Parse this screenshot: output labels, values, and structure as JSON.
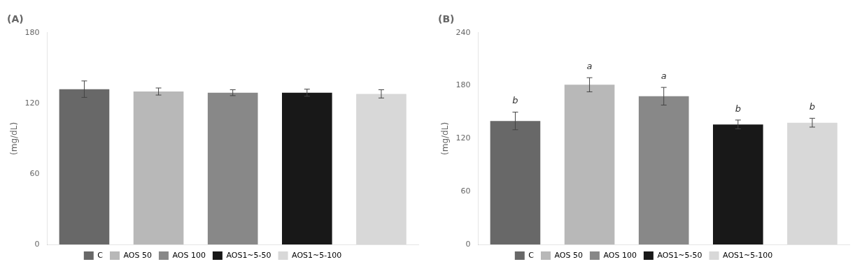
{
  "chart_data": [
    {
      "type": "bar",
      "title": "(A)",
      "categories": [
        "C",
        "AOS 50",
        "AOS 100",
        "AOS1~5-50",
        "AOS1~5-100"
      ],
      "values": [
        132,
        130,
        129,
        129,
        128
      ],
      "errors": [
        7,
        3,
        2.5,
        3,
        3.5
      ],
      "colors": [
        "#686868",
        "#b8b8b8",
        "#888888",
        "#181818",
        "#d8d8d8"
      ],
      "ylabel": "(mg/dL)",
      "ylim": [
        0,
        180
      ],
      "yticks": [
        0,
        60,
        120,
        180
      ],
      "grid": false,
      "legend": "bottom",
      "tick_labels": "y"
    },
    {
      "type": "bar",
      "title": "(B)",
      "categories": [
        "C",
        "AOS 50",
        "AOS 100",
        "AOS1~5-50",
        "AOS1~5-100"
      ],
      "values": [
        140,
        181,
        168,
        136,
        138
      ],
      "errors": [
        10,
        8,
        10,
        5,
        5
      ],
      "annotations": [
        "b",
        "a",
        "a",
        "b",
        "b"
      ],
      "colors": [
        "#686868",
        "#b8b8b8",
        "#888888",
        "#181818",
        "#d8d8d8"
      ],
      "ylabel": "(mg/dL)",
      "ylim": [
        0,
        240
      ],
      "yticks": [
        0,
        60,
        120,
        180,
        240
      ],
      "grid": false,
      "legend": "bottom",
      "tick_labels": "y"
    }
  ]
}
